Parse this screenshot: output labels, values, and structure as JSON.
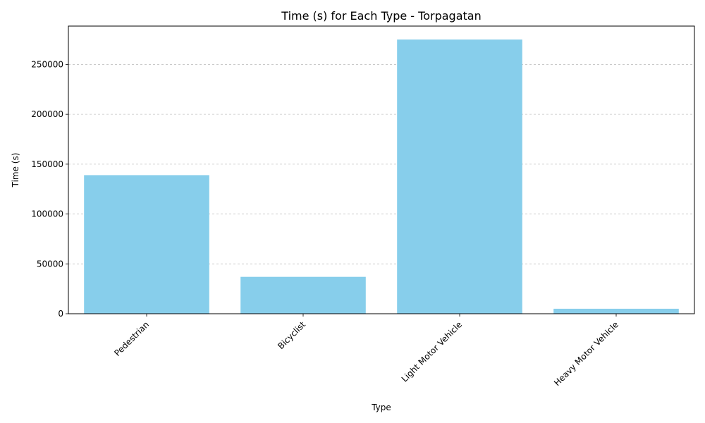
{
  "chart_data": {
    "type": "bar",
    "title": "Time (s) for Each Type - Torpagatan",
    "xlabel": "Type",
    "ylabel": "Time (s)",
    "categories": [
      "Pedestrian",
      "Bicyclist",
      "Light Motor Vehicle",
      "Heavy Motor Vehicle"
    ],
    "values": [
      139000,
      37000,
      275000,
      5000
    ],
    "ylim": [
      0,
      288500
    ],
    "yticks": [
      0,
      50000,
      100000,
      150000,
      200000,
      250000
    ],
    "grid": "y-dashed",
    "bar_color": "#87CEEB"
  }
}
